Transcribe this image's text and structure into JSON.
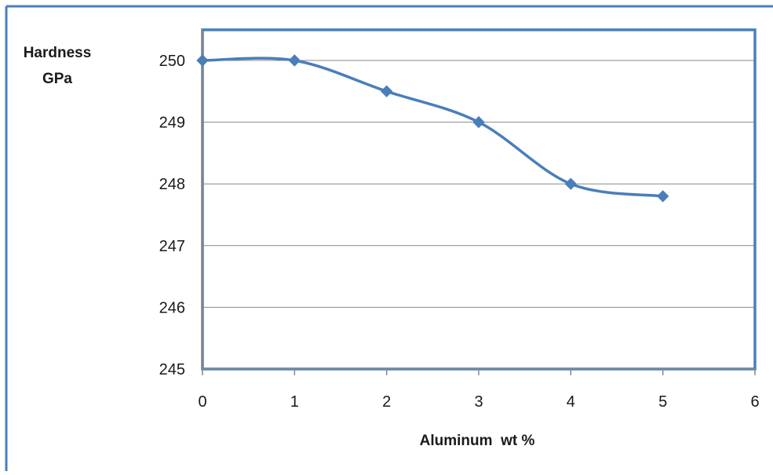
{
  "chart_data": {
    "type": "line",
    "title": "",
    "ylabel_lines": [
      "Hardness",
      "GPa"
    ],
    "xlabel": "Aluminum  wt %",
    "xlim": [
      0,
      6
    ],
    "ylim": [
      245,
      250
    ],
    "xticks": [
      0,
      1,
      2,
      3,
      4,
      5,
      6
    ],
    "yticks": [
      245,
      246,
      247,
      248,
      249,
      250
    ],
    "grid": "horizontal",
    "legend": "none",
    "smooth": true,
    "series": [
      {
        "x": [
          0,
          1,
          2,
          3,
          4,
          5
        ],
        "y": [
          250,
          250,
          249.5,
          249,
          248,
          247.8
        ]
      }
    ],
    "colors": {
      "series": "#4a7ebb",
      "frame": "#4a7ebb",
      "grid": "#888888",
      "axis": "#888888"
    }
  }
}
